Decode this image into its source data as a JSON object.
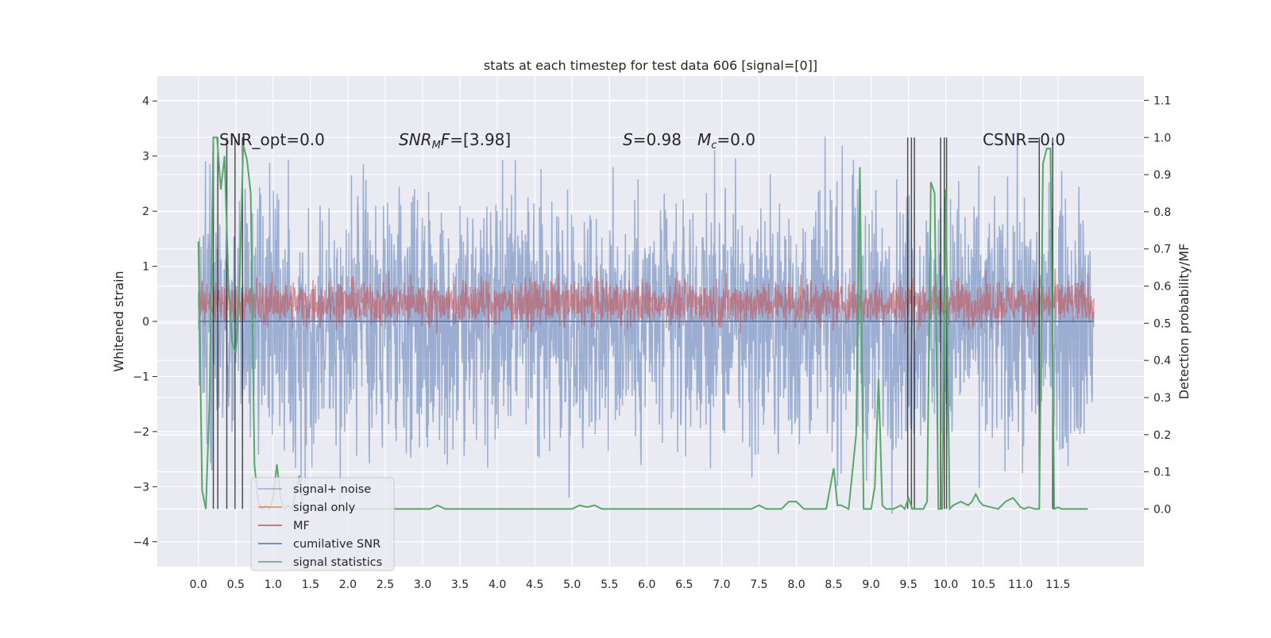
{
  "chart_data": {
    "type": "line",
    "title": "stats at each timestep for test data 606 [signal=[0]]",
    "xlabel": "",
    "ylabel": "Whitened strain",
    "y2label": "Detection probability/MF",
    "xlim": [
      -0.55,
      12.65
    ],
    "ylim": [
      -4.45,
      4.45
    ],
    "y2lim": [
      -0.155,
      1.165
    ],
    "xticks": [
      "0.0",
      "0.5",
      "1.0",
      "1.5",
      "2.0",
      "2.5",
      "3.0",
      "3.5",
      "4.0",
      "4.5",
      "5.0",
      "5.5",
      "6.0",
      "6.5",
      "7.0",
      "7.5",
      "8.0",
      "8.5",
      "9.0",
      "9.5",
      "10.0",
      "10.5",
      "11.0",
      "11.5"
    ],
    "yticks": [
      "4",
      "3",
      "2",
      "1",
      "0",
      "−1",
      "−2",
      "−3",
      "−4"
    ],
    "y2ticks": [
      "1.1",
      "1.0",
      "0.9",
      "0.8",
      "0.7",
      "0.6",
      "0.5",
      "0.4",
      "0.3",
      "0.2",
      "0.1",
      "0.0"
    ],
    "grid": true,
    "legend_position": "lower-left",
    "annotations": [
      {
        "text": "SNR_opt=0.0",
        "x": 0.2,
        "y": 3.3
      },
      {
        "text": "SNR_MF=[3.98]",
        "x": 2.6,
        "y": 3.3
      },
      {
        "text": "S=0.98",
        "x": 5.6,
        "y": 3.3
      },
      {
        "text": "M_c=0.0",
        "x": 6.6,
        "y": 3.3
      },
      {
        "text": "CSNR=0.0",
        "x": 10.4,
        "y": 3.3
      }
    ],
    "series": [
      {
        "name": "signal+ noise",
        "color": "#4c72b0",
        "axis": "left",
        "summary": "whitened strain noise, approx. range -3.5 to 4.1, amplitude ~2.2"
      },
      {
        "name": "signal only",
        "color": "#dd8452",
        "axis": "left",
        "values": "flat at 0"
      },
      {
        "name": "MF",
        "color": "#c44e52",
        "axis": "right",
        "summary": "matched-filter output fluctuating between ~0.5 and ~0.62"
      },
      {
        "name": "cumilative SNR",
        "color": "#4c72b0",
        "axis": "left",
        "values": "flat at 0"
      },
      {
        "name": "signal statistics",
        "color": "#55a868",
        "axis": "right",
        "x": [
          0.0,
          0.05,
          0.1,
          0.15,
          0.2,
          0.25,
          0.3,
          0.35,
          0.4,
          0.45,
          0.5,
          0.55,
          0.6,
          0.65,
          0.7,
          0.75,
          0.8,
          0.85,
          0.9,
          0.95,
          1.0,
          1.05,
          1.1,
          1.15,
          1.2,
          1.25,
          1.3,
          1.35,
          1.4,
          1.45,
          1.5,
          2.0,
          2.5,
          3.0,
          3.1,
          3.2,
          3.3,
          4.0,
          5.0,
          5.1,
          5.2,
          5.3,
          5.4,
          6.0,
          7.0,
          7.4,
          7.5,
          7.6,
          7.8,
          7.9,
          8.0,
          8.1,
          8.4,
          8.5,
          8.55,
          8.6,
          8.7,
          8.8,
          8.85,
          8.9,
          8.95,
          9.0,
          9.05,
          9.1,
          9.15,
          9.2,
          9.3,
          9.4,
          9.45,
          9.5,
          9.55,
          9.6,
          9.65,
          9.7,
          9.75,
          9.8,
          9.85,
          9.9,
          9.95,
          10.0,
          10.05,
          10.1,
          10.2,
          10.3,
          10.35,
          10.4,
          10.45,
          10.5,
          10.6,
          10.7,
          10.8,
          10.9,
          11.0,
          11.05,
          11.1,
          11.2,
          11.25,
          11.3,
          11.35,
          11.4,
          11.45,
          11.5,
          11.55,
          11.6,
          11.7,
          11.8,
          11.9
        ],
        "values": [
          0.72,
          0.05,
          0.0,
          0.3,
          1.0,
          1.0,
          0.86,
          0.95,
          0.62,
          0.45,
          0.42,
          0.6,
          0.98,
          0.94,
          0.85,
          0.12,
          0.02,
          0.0,
          0.01,
          0.0,
          0.03,
          0.12,
          0.03,
          0.0,
          0.01,
          0.0,
          0.04,
          0.09,
          0.0,
          0.0,
          0.0,
          0.0,
          0.0,
          0.0,
          0.0,
          0.01,
          0.0,
          0.0,
          0.0,
          0.01,
          0.005,
          0.01,
          0.0,
          0.0,
          0.0,
          0.0,
          0.01,
          0.0,
          0.0,
          0.02,
          0.02,
          0.0,
          0.0,
          0.11,
          0.01,
          0.01,
          0.0,
          0.2,
          0.92,
          0.0,
          0.0,
          0.0,
          0.06,
          0.35,
          0.01,
          0.0,
          0.0,
          0.01,
          0.0,
          0.03,
          0.0,
          0.0,
          0.0,
          0.0,
          0.02,
          0.88,
          0.85,
          0.0,
          0.0,
          0.86,
          0.0,
          0.01,
          0.02,
          0.01,
          0.02,
          0.04,
          0.02,
          0.01,
          0.005,
          0.0,
          0.02,
          0.03,
          0.005,
          0.0,
          0.005,
          0.0,
          0.0,
          0.93,
          0.97,
          0.97,
          0.0,
          0.005,
          0.0,
          0.0,
          0.0,
          0.0,
          0.0
        ]
      },
      {
        "name": "",
        "color": "#262626",
        "axis": "right",
        "type": "vlines",
        "x": [
          0.2,
          0.26,
          0.38,
          0.49,
          0.59,
          9.49,
          9.54,
          9.58,
          9.93,
          9.98,
          10.01,
          11.25,
          11.43
        ],
        "ymin": 0.0,
        "ymax": 1.0
      }
    ]
  }
}
